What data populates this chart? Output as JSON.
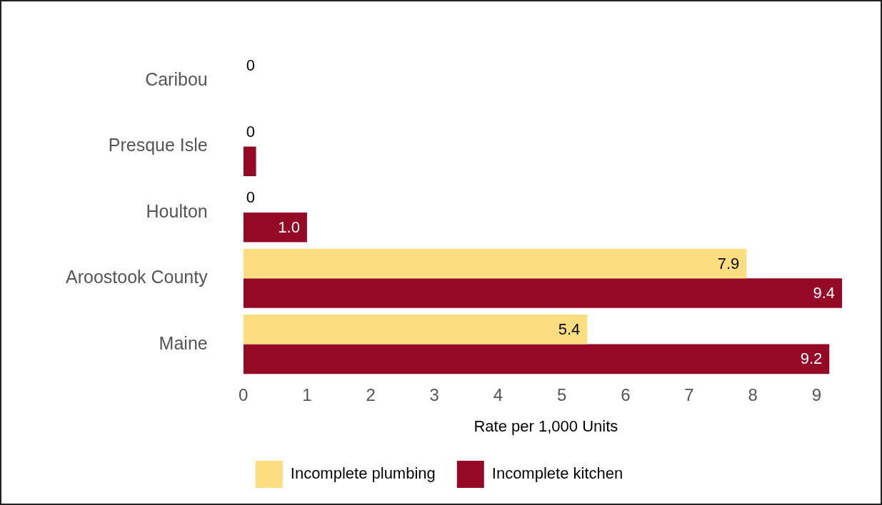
{
  "chart_data": {
    "type": "bar",
    "orientation": "horizontal",
    "xlabel": "Rate per 1,000 Units",
    "categories": [
      "Caribou",
      "Presque Isle",
      "Houlton",
      "Aroostook County",
      "Maine"
    ],
    "series": [
      {
        "name": "Incomplete plumbing",
        "color": "#fcdd80",
        "values": [
          0,
          0,
          0,
          7.9,
          5.4
        ],
        "value_labels": [
          "0",
          "0",
          "0",
          "7.9",
          "5.4"
        ]
      },
      {
        "name": "Incomplete kitchen",
        "color": "#940a26",
        "values": [
          null,
          0.2,
          1.0,
          9.4,
          9.2
        ],
        "value_labels": [
          null,
          null,
          "1.0",
          "9.4",
          "9.2"
        ]
      }
    ],
    "xlim": [
      0,
      9.5
    ],
    "xticks": [
      0,
      1,
      2,
      3,
      4,
      5,
      6,
      7,
      8,
      9
    ],
    "grid": false,
    "legend": "bottom"
  }
}
